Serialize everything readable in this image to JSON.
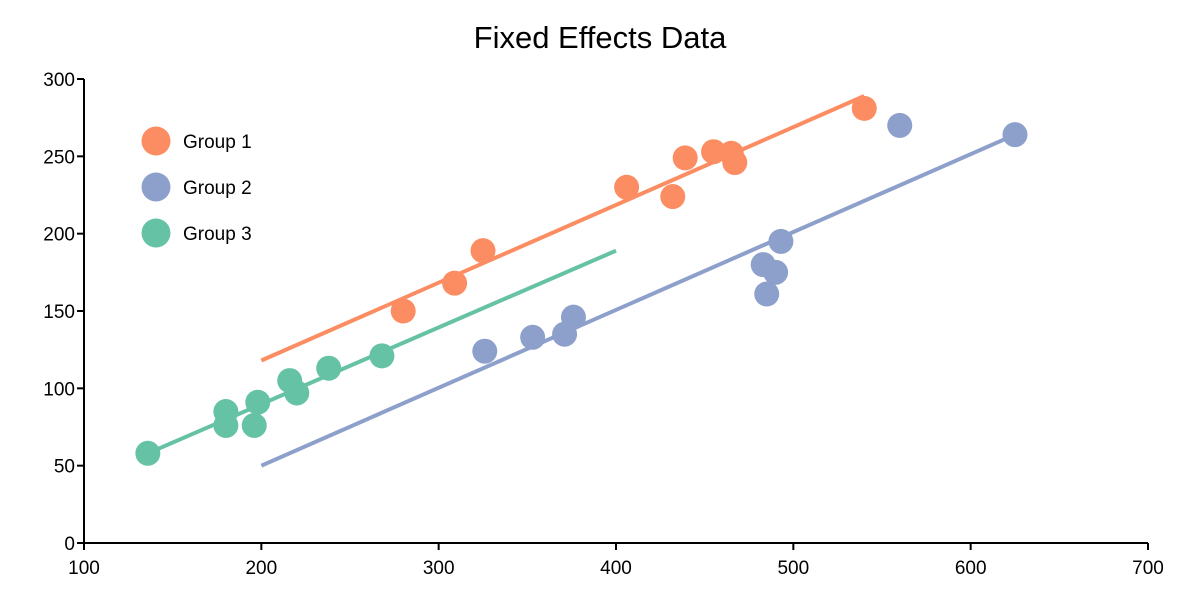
{
  "chart_data": {
    "type": "scatter",
    "title": "Fixed Effects Data",
    "xlabel": "",
    "ylabel": "",
    "xlim": [
      100,
      700
    ],
    "ylim": [
      0,
      300
    ],
    "xticks": [
      100,
      200,
      300,
      400,
      500,
      600,
      700
    ],
    "yticks": [
      0,
      50,
      100,
      150,
      200,
      250,
      300
    ],
    "grid": false,
    "legend_position": "upper-left",
    "series": [
      {
        "name": "Group 1",
        "color": "#fc8d62",
        "points": [
          [
            280,
            150
          ],
          [
            309,
            168
          ],
          [
            325,
            189
          ],
          [
            406,
            230
          ],
          [
            432,
            224
          ],
          [
            439,
            249
          ],
          [
            455,
            253
          ],
          [
            465,
            252
          ],
          [
            467,
            246
          ],
          [
            540,
            281
          ]
        ],
        "fit_line": [
          [
            200,
            118
          ],
          [
            540,
            289
          ]
        ]
      },
      {
        "name": "Group 2",
        "color": "#8da0cb",
        "points": [
          [
            326,
            124
          ],
          [
            353,
            133
          ],
          [
            371,
            135
          ],
          [
            376,
            146
          ],
          [
            483,
            180
          ],
          [
            490,
            175
          ],
          [
            485,
            161
          ],
          [
            493,
            195
          ],
          [
            560,
            270
          ],
          [
            625,
            264
          ]
        ],
        "fit_line": [
          [
            200,
            50
          ],
          [
            625,
            264
          ]
        ]
      },
      {
        "name": "Group 3",
        "color": "#66c2a5",
        "points": [
          [
            136,
            58
          ],
          [
            180,
            85
          ],
          [
            180,
            76
          ],
          [
            198,
            91
          ],
          [
            196,
            76
          ],
          [
            216,
            105
          ],
          [
            220,
            97
          ],
          [
            238,
            113
          ],
          [
            268,
            121
          ]
        ],
        "fit_line": [
          [
            136,
            58
          ],
          [
            400,
            189
          ]
        ]
      }
    ]
  }
}
